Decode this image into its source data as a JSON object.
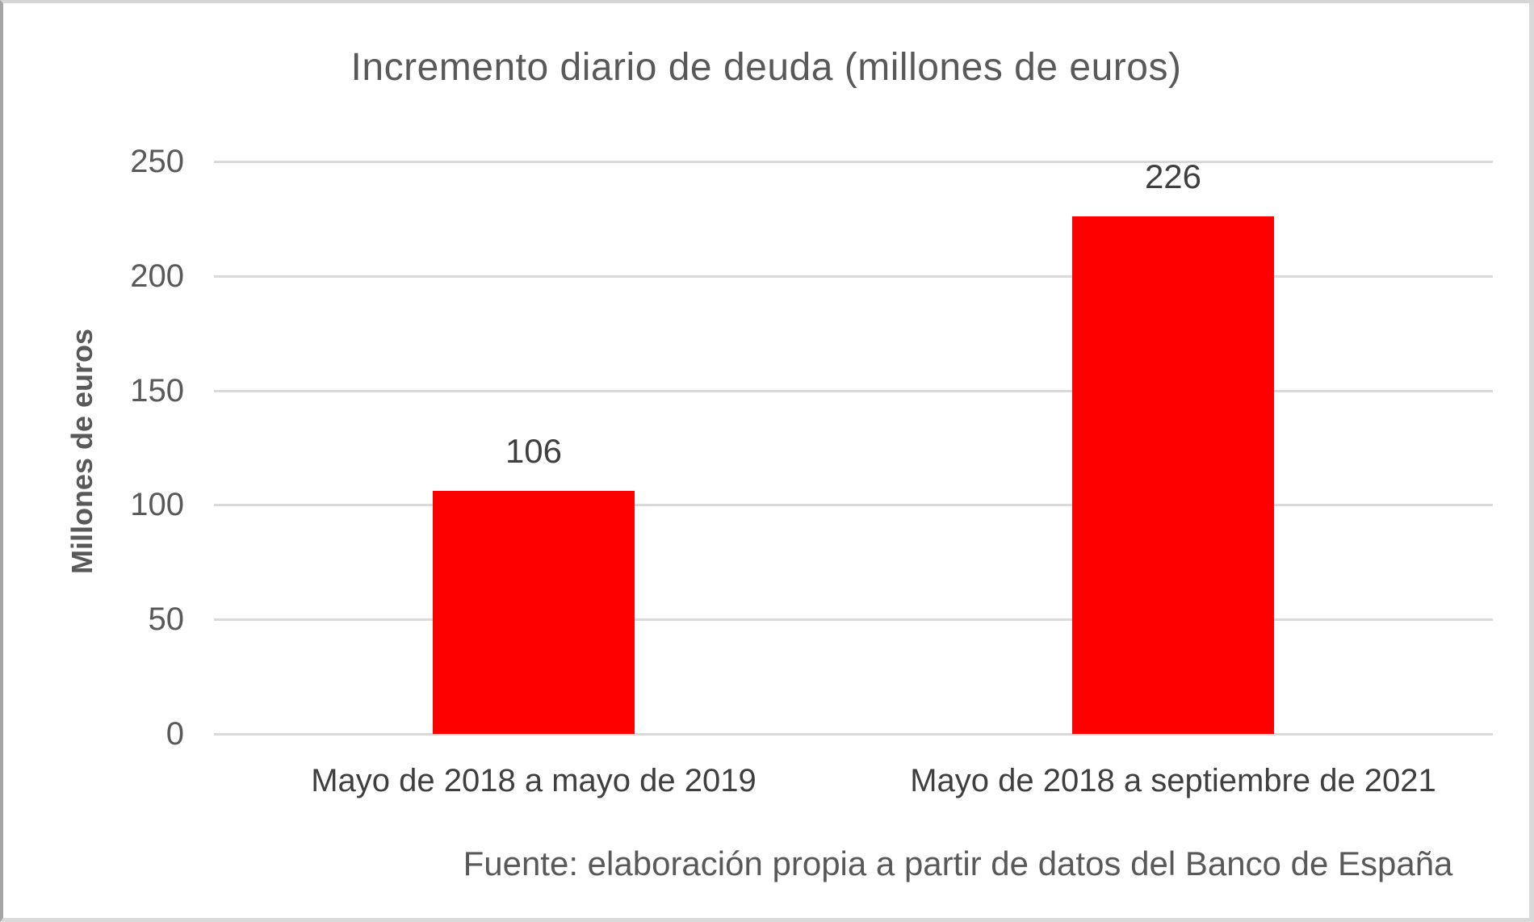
{
  "chart_data": {
    "type": "bar",
    "title": "Incremento diario de deuda (millones de euros)",
    "categories": [
      "Mayo de 2018 a mayo de 2019",
      "Mayo de 2018 a septiembre de 2021"
    ],
    "values": [
      106,
      226
    ],
    "data_labels": [
      "106",
      "226"
    ],
    "xlabel": "",
    "ylabel": "Millones de euros",
    "ylim": [
      0,
      250
    ],
    "yticks": [
      0,
      50,
      100,
      150,
      200,
      250
    ],
    "grid": true,
    "legend": false,
    "bar_color": "#ff0000",
    "gridline_color": "#d9d9d9",
    "text_color": "#595959",
    "data_label_color": "#3f3f3f",
    "source": "Fuente: elaboración propia a partir de datos del Banco de España"
  }
}
